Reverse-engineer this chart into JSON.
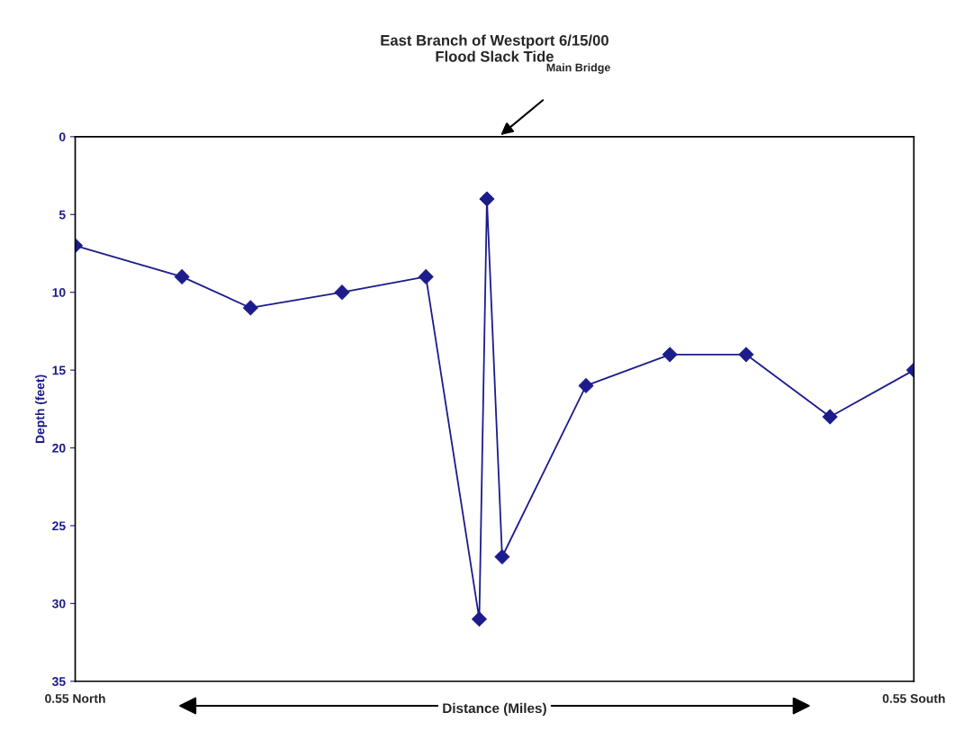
{
  "chart_data": {
    "type": "line",
    "title": "East Branch of Westport 6/15/00\nFlood Slack Tide",
    "xlabel": "Distance (Miles)",
    "ylabel": "Depth (feet)",
    "x": [
      -0.55,
      -0.41,
      -0.32,
      -0.2,
      -0.09,
      -0.02,
      -0.01,
      0.01,
      0.12,
      0.23,
      0.33,
      0.44,
      0.55
    ],
    "series": [
      {
        "color": "#1c1c8c",
        "values": [
          7,
          9,
          11,
          10,
          9,
          31,
          4,
          27,
          16,
          14,
          14,
          18,
          15
        ]
      }
    ],
    "xlim": [
      -0.55,
      0.55
    ],
    "xticks": [
      {
        "value": -0.55,
        "label": "0.55 North"
      },
      {
        "value": 0.55,
        "label": "0.55 South"
      }
    ],
    "ylim": [
      35,
      0
    ],
    "yticks": [
      0,
      5,
      10,
      15,
      20,
      25,
      30,
      35
    ],
    "annotations": [
      "Main Bridge"
    ],
    "grid": false,
    "legend": false,
    "marker": "diamond",
    "line_style": "solid"
  }
}
